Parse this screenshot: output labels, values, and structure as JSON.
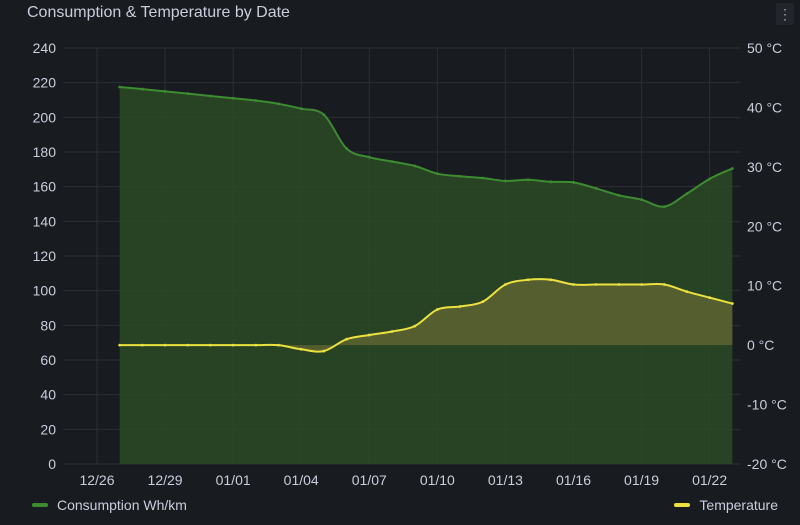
{
  "panel": {
    "title": "Consumption & Temperature by Date",
    "menu_icon": "ellipsis-vertical-icon"
  },
  "legend": {
    "consumption_label": "Consumption Wh/km",
    "temperature_label": "Temperature"
  },
  "colors": {
    "background": "#181b1f",
    "grid": "#2c2f35",
    "text": "#ccccdc",
    "consumption": "#3d8c31",
    "consumption_fill": "#2a4a26",
    "temperature": "#ece140",
    "temperature_fill": "#5d6330"
  },
  "chart_data": {
    "type": "area",
    "title": "Consumption & Temperature by Date",
    "x_ticks": [
      "12/26",
      "12/29",
      "01/01",
      "01/04",
      "01/07",
      "01/10",
      "01/13",
      "01/16",
      "01/19",
      "01/22"
    ],
    "y_left": {
      "unit": "Wh/km",
      "ylim": [
        0,
        240
      ],
      "ticks": [
        "0",
        "20",
        "40",
        "60",
        "80",
        "100",
        "120",
        "140",
        "160",
        "180",
        "200",
        "220",
        "240"
      ]
    },
    "y_right": {
      "unit": "°C",
      "ylim": [
        -20,
        50
      ],
      "ticks": [
        "-20 °C",
        "-10 °C",
        "0 °C",
        "10 °C",
        "20 °C",
        "30 °C",
        "40 °C",
        "50 °C"
      ]
    },
    "grid": true,
    "legend_placement": "bottom",
    "series": [
      {
        "name": "Consumption Wh/km",
        "axis": "left",
        "points": [
          [
            "12/27",
            217.5
          ],
          [
            "12/28",
            216.3
          ],
          [
            "12/29",
            215.0
          ],
          [
            "12/30",
            213.7
          ],
          [
            "12/31",
            212.3
          ],
          [
            "01/01",
            211.0
          ],
          [
            "01/02",
            209.7
          ],
          [
            "01/03",
            207.8
          ],
          [
            "01/04",
            205.0
          ],
          [
            "01/05",
            201.5
          ],
          [
            "01/06",
            182.0
          ],
          [
            "01/07",
            177.0
          ],
          [
            "01/08",
            174.5
          ],
          [
            "01/09",
            172.0
          ],
          [
            "01/10",
            167.5
          ],
          [
            "01/11",
            166.0
          ],
          [
            "01/12",
            165.0
          ],
          [
            "01/13",
            163.3
          ],
          [
            "01/14",
            164.0
          ],
          [
            "01/15",
            162.8
          ],
          [
            "01/16",
            162.5
          ],
          [
            "01/17",
            159.0
          ],
          [
            "01/18",
            155.0
          ],
          [
            "01/19",
            152.5
          ],
          [
            "01/20",
            148.5
          ],
          [
            "01/21",
            156.0
          ],
          [
            "01/22",
            164.5
          ],
          [
            "01/23",
            170.5
          ]
        ]
      },
      {
        "name": "Temperature",
        "axis": "right",
        "points": [
          [
            "12/27",
            0.0
          ],
          [
            "12/28",
            0.0
          ],
          [
            "12/29",
            0.0
          ],
          [
            "12/30",
            0.0
          ],
          [
            "12/31",
            0.0
          ],
          [
            "01/01",
            0.0
          ],
          [
            "01/02",
            0.0
          ],
          [
            "01/03",
            0.0
          ],
          [
            "01/04",
            -0.7
          ],
          [
            "01/05",
            -1.0
          ],
          [
            "01/06",
            1.0
          ],
          [
            "01/07",
            1.7
          ],
          [
            "01/08",
            2.3
          ],
          [
            "01/09",
            3.2
          ],
          [
            "01/10",
            6.0
          ],
          [
            "01/11",
            6.5
          ],
          [
            "01/12",
            7.3
          ],
          [
            "01/13",
            10.2
          ],
          [
            "01/14",
            11.0
          ],
          [
            "01/15",
            11.0
          ],
          [
            "01/16",
            10.2
          ],
          [
            "01/17",
            10.2
          ],
          [
            "01/18",
            10.2
          ],
          [
            "01/19",
            10.2
          ],
          [
            "01/20",
            10.2
          ],
          [
            "01/21",
            9.0
          ],
          [
            "01/22",
            8.0
          ],
          [
            "01/23",
            7.0
          ]
        ]
      }
    ]
  }
}
